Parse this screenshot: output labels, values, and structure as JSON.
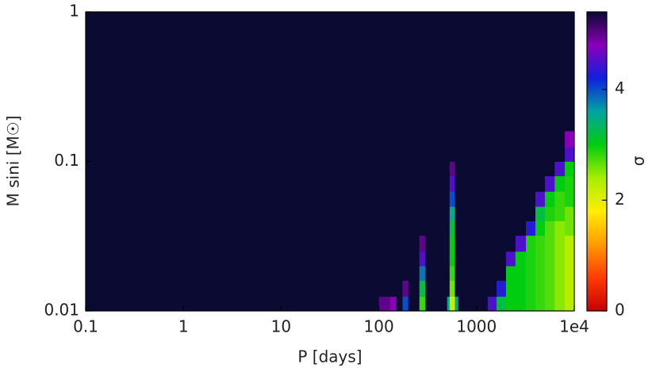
{
  "chart_data": {
    "type": "heatmap",
    "xlabel": "P [days]",
    "ylabel": "M sini [M☉]",
    "colorbar_label": "σ",
    "x_edges": [
      0.1,
      1,
      10,
      100,
      130,
      150,
      175,
      200,
      260,
      300,
      500,
      530,
      600,
      650,
      1000,
      1300,
      1600,
      2000,
      2500,
      3200,
      4000,
      5000,
      6300,
      8000,
      10000
    ],
    "y_edges": [
      0.01,
      0.0125,
      0.016,
      0.02,
      0.025,
      0.032,
      0.04,
      0.05,
      0.063,
      0.08,
      0.1,
      0.125,
      0.16,
      1
    ],
    "z": [
      [
        5.4,
        5.4,
        5.4,
        5.0,
        4.8,
        5.4,
        4.0,
        5.4,
        2.8,
        5.4,
        3.5,
        2.2,
        3.5,
        5.4,
        5.4,
        4.5,
        3.2,
        3.0,
        3.0,
        2.9,
        2.8,
        2.7,
        2.5,
        2.3
      ],
      [
        5.4,
        5.4,
        5.4,
        5.4,
        5.4,
        5.4,
        5.0,
        5.4,
        3.2,
        5.4,
        5.4,
        2.6,
        5.4,
        5.4,
        5.4,
        5.4,
        4.3,
        3.0,
        3.0,
        2.9,
        2.8,
        2.7,
        2.5,
        2.3
      ],
      [
        5.4,
        5.4,
        5.4,
        5.4,
        5.4,
        5.4,
        5.4,
        5.4,
        3.8,
        5.4,
        5.4,
        2.8,
        5.4,
        5.4,
        5.4,
        5.4,
        5.4,
        3.0,
        3.0,
        2.9,
        2.8,
        2.7,
        2.5,
        2.3
      ],
      [
        5.4,
        5.4,
        5.4,
        5.4,
        5.4,
        5.4,
        5.4,
        5.4,
        4.5,
        5.4,
        5.4,
        3.0,
        5.4,
        5.4,
        5.4,
        5.4,
        5.4,
        4.5,
        3.0,
        2.9,
        2.8,
        2.7,
        2.5,
        2.3
      ],
      [
        5.4,
        5.4,
        5.4,
        5.4,
        5.4,
        5.4,
        5.4,
        5.4,
        5.0,
        5.4,
        5.4,
        3.0,
        5.4,
        5.4,
        5.4,
        5.4,
        5.4,
        5.4,
        4.5,
        2.9,
        2.8,
        2.7,
        2.5,
        2.3
      ],
      [
        5.4,
        5.4,
        5.4,
        5.4,
        5.4,
        5.4,
        5.4,
        5.4,
        5.4,
        5.4,
        5.4,
        3.2,
        5.4,
        5.4,
        5.4,
        5.4,
        5.4,
        5.4,
        5.4,
        4.3,
        3.0,
        2.7,
        2.5,
        2.6
      ],
      [
        5.4,
        5.4,
        5.4,
        5.4,
        5.4,
        5.4,
        5.4,
        5.4,
        5.4,
        5.4,
        5.4,
        3.5,
        5.4,
        5.4,
        5.4,
        5.4,
        5.4,
        5.4,
        5.4,
        5.4,
        3.2,
        2.9,
        2.8,
        2.6
      ],
      [
        5.4,
        5.4,
        5.4,
        5.4,
        5.4,
        5.4,
        5.4,
        5.4,
        5.4,
        5.4,
        5.4,
        4.0,
        5.4,
        5.4,
        5.4,
        5.4,
        5.4,
        5.4,
        5.4,
        5.4,
        4.5,
        3.0,
        2.8,
        2.9
      ],
      [
        5.4,
        5.4,
        5.4,
        5.4,
        5.4,
        5.4,
        5.4,
        5.4,
        5.4,
        5.4,
        5.4,
        4.5,
        5.4,
        5.4,
        5.4,
        5.4,
        5.4,
        5.4,
        5.4,
        5.4,
        5.4,
        4.5,
        3.0,
        2.9
      ],
      [
        5.4,
        5.4,
        5.4,
        5.4,
        5.4,
        5.4,
        5.4,
        5.4,
        5.4,
        5.4,
        5.4,
        5.0,
        5.4,
        5.4,
        5.4,
        5.4,
        5.4,
        5.4,
        5.4,
        5.4,
        5.4,
        5.4,
        4.5,
        3.0
      ],
      [
        5.4,
        5.4,
        5.4,
        5.4,
        5.4,
        5.4,
        5.4,
        5.4,
        5.4,
        5.4,
        5.4,
        5.4,
        5.4,
        5.4,
        5.4,
        5.4,
        5.4,
        5.4,
        5.4,
        5.4,
        5.4,
        5.4,
        5.4,
        4.5
      ],
      [
        5.4,
        5.4,
        5.4,
        5.4,
        5.4,
        5.4,
        5.4,
        5.4,
        5.4,
        5.4,
        5.4,
        5.4,
        5.4,
        5.4,
        5.4,
        5.4,
        5.4,
        5.4,
        5.4,
        5.4,
        5.4,
        5.4,
        5.4,
        4.8
      ],
      [
        5.4,
        5.4,
        5.4,
        5.4,
        5.4,
        5.4,
        5.4,
        5.4,
        5.4,
        5.4,
        5.4,
        5.4,
        5.4,
        5.4,
        5.4,
        5.4,
        5.4,
        5.4,
        5.4,
        5.4,
        5.4,
        5.4,
        5.4,
        5.4
      ]
    ],
    "xlim": [
      0.1,
      10000
    ],
    "xticks": [
      0.1,
      1,
      10,
      100,
      1000,
      {
        "value": 10000,
        "label": "1e4"
      }
    ],
    "ylim": [
      0.01,
      1
    ],
    "yticks": [
      0.01,
      0.1,
      1
    ],
    "xscale": "log",
    "yscale": "log",
    "zlim": [
      0,
      5.4
    ],
    "zticks": [
      0,
      2,
      4
    ],
    "colormap": [
      "#c80000",
      "#ff3c00",
      "#ff9a00",
      "#ffee00",
      "#a8ee00",
      "#00cc10",
      "#00a4a0",
      "#1020dd",
      "#8a00b8",
      "#0a0a32"
    ]
  }
}
